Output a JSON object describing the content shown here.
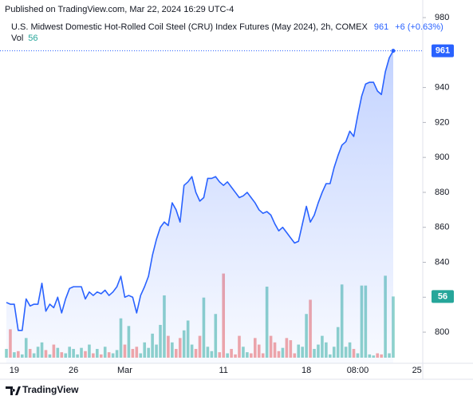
{
  "chart_data": {
    "type": "line",
    "published": "Published on TradingView.com, Mar 22, 2024 16:29 UTC-4",
    "title": "U.S. Midwest Domestic Hot-Rolled Coil Steel (CRU) Index Futures (May 2024), 2h, COMEX",
    "change": "+6 (+0.63%)",
    "brand": "TradingView",
    "categories": [
      null,
      null,
      "19",
      null,
      null,
      null,
      null,
      null,
      null,
      null,
      null,
      null,
      null,
      null,
      null,
      null,
      null,
      "26",
      null,
      null,
      null,
      null,
      null,
      null,
      null,
      null,
      null,
      null,
      null,
      null,
      "Mar",
      null,
      null,
      null,
      null,
      null,
      null,
      null,
      null,
      null,
      null,
      null,
      null,
      null,
      null,
      null,
      null,
      null,
      null,
      null,
      null,
      null,
      null,
      null,
      null,
      "11",
      null,
      null,
      null,
      null,
      null,
      null,
      null,
      null,
      null,
      null,
      null,
      null,
      null,
      null,
      null,
      null,
      null,
      null,
      null,
      null,
      "18",
      null,
      null,
      null,
      null,
      null,
      null,
      null,
      null,
      null,
      null,
      null,
      null,
      "08:00",
      null,
      null,
      null,
      null,
      null,
      null,
      null,
      null,
      null,
      null,
      null,
      null,
      null,
      null,
      "25"
    ],
    "series": [
      {
        "color": "#2962ff",
        "values": [
          817,
          816,
          816,
          801,
          801,
          819,
          815,
          816,
          816,
          828,
          812,
          816,
          814,
          820,
          811,
          819,
          825,
          826,
          826,
          826,
          819,
          823,
          821,
          823,
          822,
          824,
          821,
          823,
          826,
          832,
          820,
          821,
          820,
          811,
          821,
          826,
          832,
          844,
          853,
          860,
          863,
          861,
          874,
          870,
          863,
          884,
          886,
          889,
          880,
          875,
          877,
          888,
          888,
          889,
          886,
          884,
          886,
          883,
          880,
          877,
          878,
          880,
          877,
          874,
          870,
          868,
          869,
          867,
          862,
          858,
          860,
          857,
          854,
          851,
          852,
          862,
          872,
          863,
          867,
          874,
          880,
          885,
          885,
          894,
          901,
          907,
          909,
          915,
          912,
          924,
          935,
          942,
          943,
          943,
          938,
          936,
          949,
          957,
          961,
          null,
          null,
          null,
          null,
          null,
          null
        ]
      },
      {
        "name": "Vol",
        "type": "bar",
        "axis": "y2",
        "color": "#26a69a",
        "up_color": "#8fd3cb",
        "down_color": "#f4a7a7",
        "values": [
          8,
          26,
          5,
          6,
          3,
          18,
          8,
          4,
          10,
          14,
          7,
          3,
          12,
          9,
          5,
          4,
          10,
          8,
          3,
          9,
          6,
          12,
          4,
          8,
          3,
          10,
          5,
          4,
          7,
          36,
          12,
          29,
          8,
          10,
          4,
          14,
          9,
          22,
          12,
          30,
          57,
          20,
          14,
          8,
          18,
          25,
          34,
          12,
          8,
          20,
          55,
          10,
          6,
          40,
          5,
          77,
          4,
          8,
          3,
          20,
          10,
          5,
          4,
          18,
          12,
          4,
          65,
          20,
          14,
          6,
          9,
          18,
          16,
          4,
          12,
          10,
          40,
          53,
          8,
          12,
          20,
          14,
          3,
          10,
          28,
          67,
          10,
          14,
          8,
          4,
          66,
          66,
          3,
          2,
          4,
          3,
          75,
          4,
          56,
          null,
          null,
          null,
          null,
          null,
          null
        ]
      }
    ],
    "ylim": [
      785.4,
      985.5
    ],
    "yticks": [
      800,
      820,
      840,
      860,
      880,
      900,
      920,
      940,
      980
    ],
    "y2lim": [
      0,
      320
    ],
    "grid": false
  }
}
